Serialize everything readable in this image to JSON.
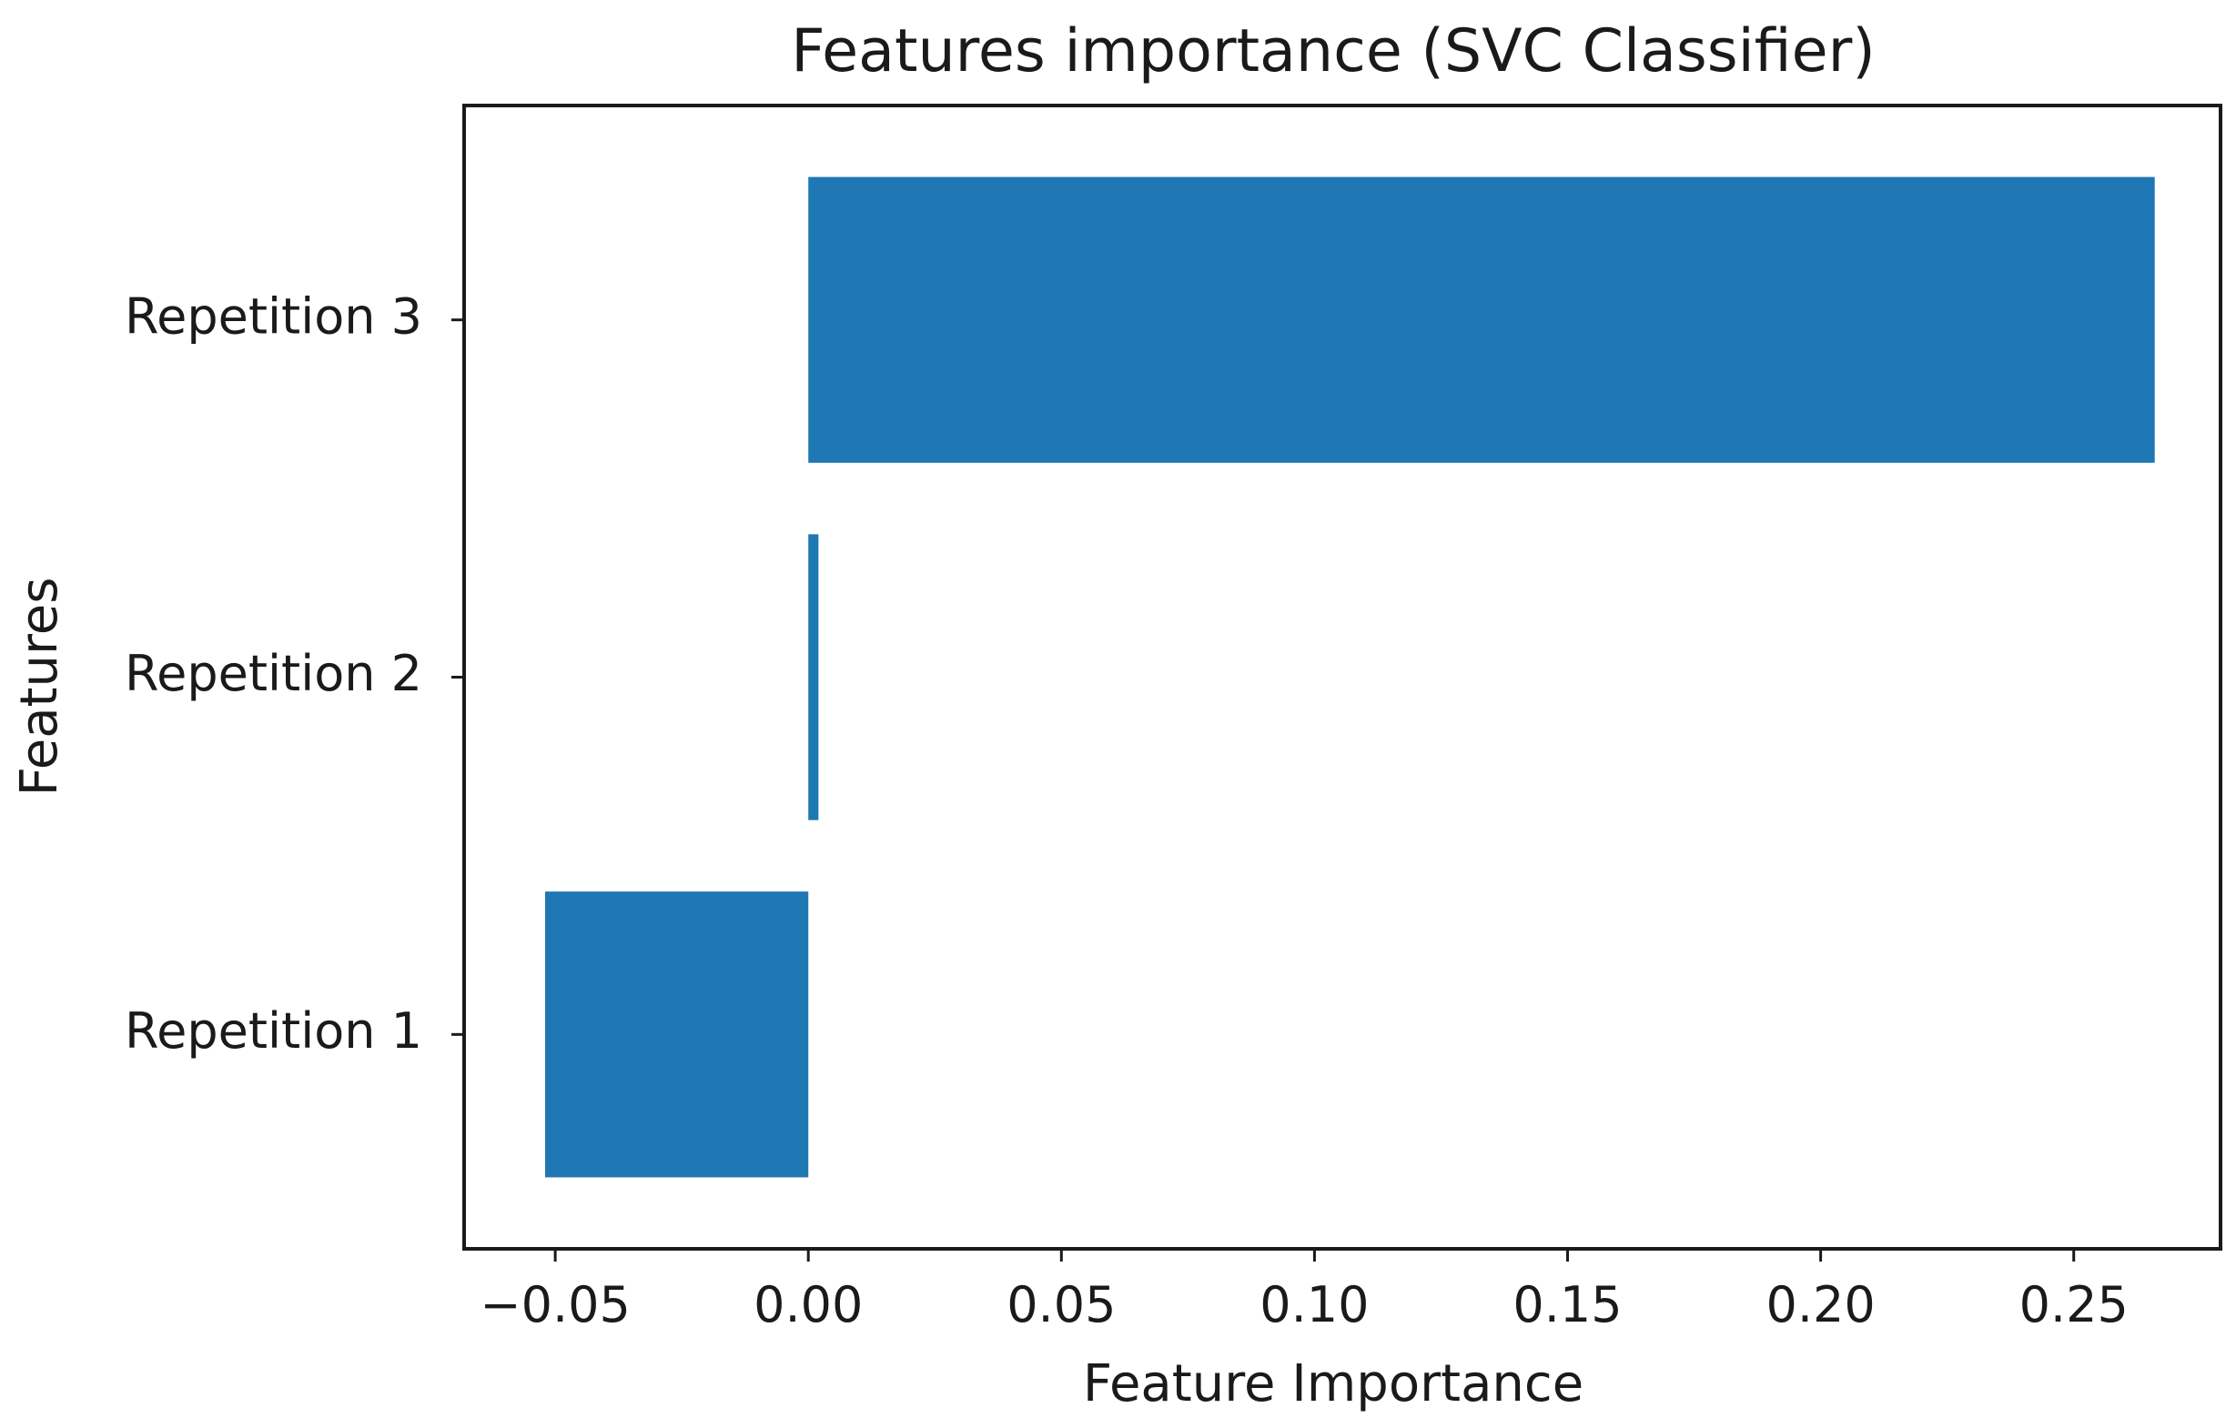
{
  "chart_data": {
    "type": "bar",
    "orientation": "horizontal",
    "title": "Features importance (SVC Classifier)",
    "xlabel": "Feature Importance",
    "ylabel": "Features",
    "categories": [
      "Repetition 1",
      "Repetition 2",
      "Repetition 3"
    ],
    "values": [
      -0.052,
      0.002,
      0.266
    ],
    "xlim": [
      -0.068,
      0.279
    ],
    "xticks": [
      -0.05,
      0.0,
      0.05,
      0.1,
      0.15,
      0.2,
      0.25
    ],
    "xtick_labels": [
      "−0.05",
      "0.00",
      "0.05",
      "0.10",
      "0.15",
      "0.20",
      "0.25"
    ],
    "bar_color": "#1f77b4",
    "grid": false,
    "legend": "none"
  }
}
